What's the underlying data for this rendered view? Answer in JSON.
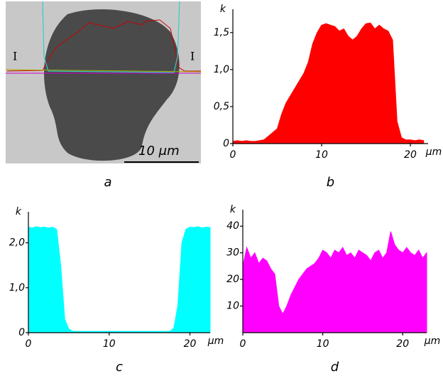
{
  "panel_a": {
    "left_label": "I",
    "right_label": "I",
    "scale_bar": "10 μm",
    "caption": "a"
  },
  "chart_data": [
    {
      "type": "area",
      "caption": "b",
      "y_label": "k",
      "x_label": "μm",
      "color": "#ff0000",
      "x": [
        0,
        0.5,
        1,
        1.5,
        2,
        2.5,
        3,
        3.5,
        4,
        4.5,
        5,
        5.5,
        6,
        6.5,
        7,
        7.5,
        8,
        8.5,
        9,
        9.5,
        10,
        10.5,
        11,
        11.5,
        12,
        12.5,
        13,
        13.5,
        14,
        14.5,
        15,
        15.5,
        16,
        16.5,
        17,
        17.5,
        18,
        18.5,
        19,
        19.5,
        20,
        20.5,
        21,
        21.5
      ],
      "values": [
        0.03,
        0.04,
        0.03,
        0.04,
        0.03,
        0.03,
        0.04,
        0.05,
        0.1,
        0.15,
        0.2,
        0.4,
        0.55,
        0.65,
        0.75,
        0.85,
        0.95,
        1.1,
        1.35,
        1.5,
        1.6,
        1.62,
        1.6,
        1.58,
        1.52,
        1.55,
        1.45,
        1.4,
        1.45,
        1.55,
        1.62,
        1.63,
        1.55,
        1.6,
        1.55,
        1.52,
        1.4,
        0.3,
        0.08,
        0.05,
        0.05,
        0.04,
        0.05,
        0.04
      ],
      "xlim": [
        0,
        22
      ],
      "ylim": [
        0,
        1.7
      ],
      "xticks": [
        0,
        10,
        20
      ],
      "yticks": [
        0,
        {
          "value": 0.5,
          "label": "0,5"
        },
        {
          "value": 1,
          "label": "1,0"
        },
        {
          "value": 1.5,
          "label": "1,5"
        }
      ]
    },
    {
      "type": "area",
      "caption": "c",
      "y_label": "k",
      "x_label": "μm",
      "color": "#00ffff",
      "x": [
        0,
        0.5,
        1,
        1.5,
        2,
        2.5,
        3,
        3.5,
        4,
        4.5,
        5,
        5.5,
        6,
        6.5,
        7,
        7.5,
        8,
        8.5,
        9,
        9.5,
        10,
        10.5,
        11,
        11.5,
        12,
        12.5,
        13,
        13.5,
        14,
        14.5,
        15,
        15.5,
        16,
        16.5,
        17,
        17.5,
        18,
        18.5,
        19,
        19.5,
        20,
        20.5,
        21,
        21.5,
        22,
        22.5
      ],
      "values": [
        2.35,
        2.33,
        2.36,
        2.34,
        2.35,
        2.33,
        2.35,
        2.3,
        1.5,
        0.3,
        0.08,
        0.03,
        0.03,
        0.03,
        0.03,
        0.03,
        0.03,
        0.03,
        0.03,
        0.03,
        0.03,
        0.03,
        0.03,
        0.03,
        0.03,
        0.03,
        0.03,
        0.03,
        0.03,
        0.03,
        0.03,
        0.03,
        0.03,
        0.03,
        0.03,
        0.03,
        0.1,
        0.6,
        2.0,
        2.3,
        2.35,
        2.34,
        2.36,
        2.33,
        2.35,
        2.34
      ],
      "xlim": [
        0,
        22.5
      ],
      "ylim": [
        0,
        2.5
      ],
      "xticks": [
        0,
        10,
        20
      ],
      "yticks": [
        0,
        {
          "value": 1,
          "label": "1,0"
        },
        {
          "value": 2,
          "label": "2,0"
        }
      ]
    },
    {
      "type": "area",
      "caption": "d",
      "y_label": "k",
      "x_label": "μm",
      "color": "#ff00ff",
      "x": [
        0,
        0.5,
        1,
        1.5,
        2,
        2.5,
        3,
        3.5,
        4,
        4.5,
        5,
        5.5,
        6,
        6.5,
        7,
        7.5,
        8,
        8.5,
        9,
        9.5,
        10,
        10.5,
        11,
        11.5,
        12,
        12.5,
        13,
        13.5,
        14,
        14.5,
        15,
        15.5,
        16,
        16.5,
        17,
        17.5,
        18,
        18.5,
        19,
        19.5,
        20,
        20.5,
        21,
        21.5,
        22,
        22.5,
        23
      ],
      "values": [
        25,
        32,
        28,
        30,
        26,
        28,
        27,
        24,
        22,
        10,
        7,
        10,
        14,
        17,
        20,
        22,
        24,
        25,
        26,
        28,
        31,
        30,
        28,
        31,
        30,
        32,
        29,
        30,
        28,
        31,
        30,
        29,
        27,
        30,
        31,
        28,
        30,
        38,
        33,
        31,
        30,
        32,
        30,
        29,
        31,
        28,
        30
      ],
      "xlim": [
        0,
        23
      ],
      "ylim": [
        0,
        43
      ],
      "xticks": [
        0,
        10,
        20
      ],
      "yticks": [
        10,
        20,
        30,
        40
      ]
    }
  ]
}
